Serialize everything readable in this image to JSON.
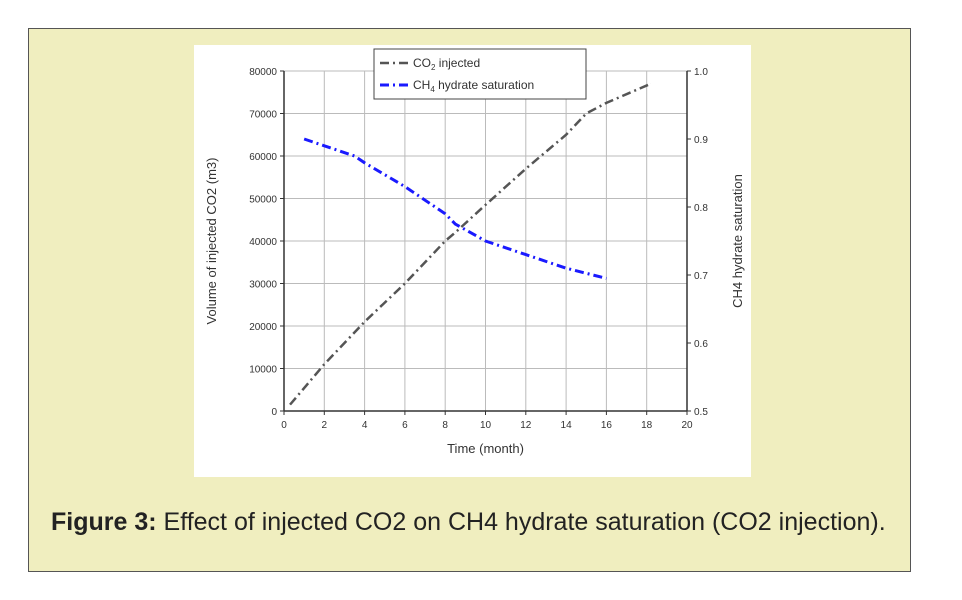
{
  "caption": {
    "label": "Figure 3:",
    "text": "Effect of injected CO2 on CH4 hydrate saturation (CO2 injection)."
  },
  "chart_data": {
    "type": "line",
    "title": "",
    "xlabel": "Time (month)",
    "ylabel": "Volume of injected CO2 (m3)",
    "y2label": "CH4 hydrate saturation",
    "xlim": [
      0,
      20
    ],
    "ylim": [
      0,
      80000
    ],
    "y2lim": [
      0.5,
      1.0
    ],
    "xticks": [
      "0",
      "2",
      "4",
      "6",
      "8",
      "10",
      "12",
      "14",
      "16",
      "18",
      "20"
    ],
    "yticks": [
      "0",
      "10000",
      "20000",
      "30000",
      "40000",
      "50000",
      "60000",
      "70000",
      "80000"
    ],
    "y2ticks": [
      "0.5",
      "0.6",
      "0.7",
      "0.8",
      "0.9",
      "1.0"
    ],
    "grid": true,
    "legend_position": "top-center",
    "series": [
      {
        "name": "CO2 injected",
        "legend_main": "CO",
        "legend_sub": "2",
        "legend_rest": " injected",
        "axis": "left",
        "color": "#555555",
        "x": [
          0.3,
          2,
          4,
          6,
          8,
          8.5,
          10,
          12,
          14,
          15,
          16,
          18.2
        ],
        "y": [
          1500,
          11000,
          21000,
          30000,
          40000,
          42000,
          48500,
          57000,
          65000,
          70000,
          72500,
          77000
        ]
      },
      {
        "name": "CH4 hydrate saturation",
        "legend_main": "CH",
        "legend_sub": "4",
        "legend_rest": " hydrate saturation",
        "axis": "right",
        "color": "#1a1aff",
        "x": [
          1,
          2,
          3.5,
          4,
          6,
          8,
          8.5,
          10,
          12,
          14,
          16
        ],
        "y": [
          0.9,
          0.89,
          0.875,
          0.865,
          0.83,
          0.79,
          0.775,
          0.75,
          0.73,
          0.71,
          0.695
        ]
      }
    ]
  }
}
